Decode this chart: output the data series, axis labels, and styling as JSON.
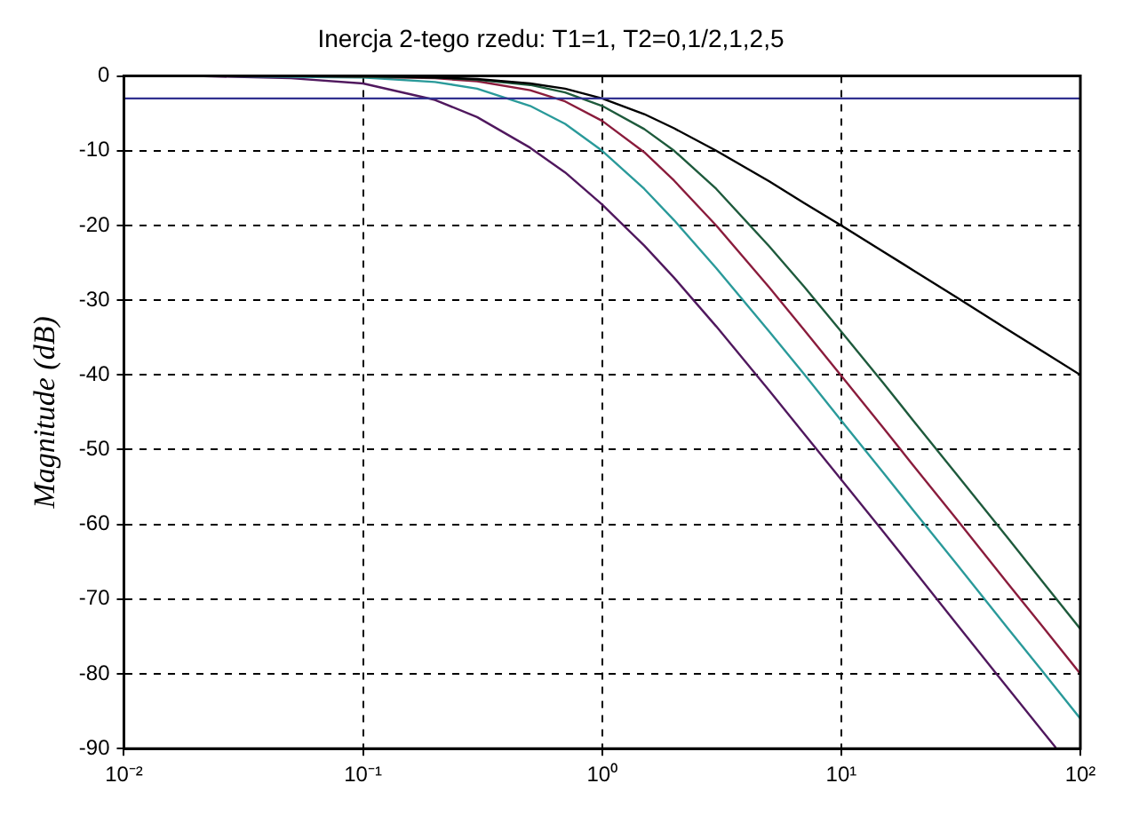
{
  "chart_data": {
    "type": "line",
    "title": "Inercja 2-tego rzedu: T1=1, T2=0,1/2,1,2,5",
    "ylabel": "Magnitude (dB)",
    "x": [
      0.01,
      0.02,
      0.05,
      0.1,
      0.2,
      0.3,
      0.5,
      0.7,
      1,
      1.5,
      2,
      3,
      5,
      7,
      10,
      15,
      20,
      30,
      50,
      70,
      100
    ],
    "series": [
      {
        "color": "#000000",
        "values": [
          0,
          0,
          0,
          0,
          -0.2,
          -0.4,
          -1,
          -1.7,
          -3,
          -5.1,
          -7,
          -10,
          -14.1,
          -17,
          -20,
          -23.5,
          -26,
          -29.5,
          -34,
          -36.9,
          -40
        ]
      },
      {
        "color": "#1e5a3c",
        "values": [
          0,
          0,
          0,
          -0.1,
          -0.2,
          -0.5,
          -1.2,
          -2.2,
          -4,
          -7.1,
          -10,
          -15.1,
          -22.8,
          -28.2,
          -34.2,
          -41.1,
          -46.1,
          -53.1,
          -61.9,
          -67.8,
          -74
        ]
      },
      {
        "color": "#8a1c3c",
        "values": [
          0,
          0,
          0,
          -0.1,
          -0.3,
          -0.7,
          -1.9,
          -3.4,
          -6,
          -10.2,
          -14,
          -20,
          -28.3,
          -34,
          -40.1,
          -47.1,
          -52.1,
          -59.1,
          -68,
          -73.8,
          -80
        ]
      },
      {
        "color": "#2a9a9a",
        "values": [
          0,
          0,
          -0.1,
          -0.2,
          -0.8,
          -1.7,
          -4,
          -6.4,
          -10,
          -15.1,
          -19.3,
          -25.7,
          -34.2,
          -39.9,
          -46.1,
          -53.1,
          -58.1,
          -65.1,
          -74,
          -79.8,
          -86
        ]
      },
      {
        "color": "#50185e",
        "x": [
          0.01,
          0.02,
          0.05,
          0.1,
          0.2,
          0.3,
          0.5,
          0.7,
          1,
          1.5,
          2,
          3,
          5,
          7,
          10,
          15,
          20,
          30,
          50,
          70,
          79
        ],
        "values": [
          0,
          0,
          -0.3,
          -1,
          -3.2,
          -5.5,
          -9.6,
          -12.9,
          -17.2,
          -22.7,
          -27,
          -33.5,
          -42.1,
          -47.9,
          -54,
          -61,
          -66,
          -73.1,
          -82,
          -87.8,
          -89.9
        ]
      }
    ],
    "log": "x",
    "xlim": [
      0.01,
      100
    ],
    "xticks": [
      {
        "value": 0.01,
        "label": "10⁻²"
      },
      {
        "value": 0.1,
        "label": "10⁻¹"
      },
      {
        "value": 1,
        "label": "10⁰"
      },
      {
        "value": 10,
        "label": "10¹"
      },
      {
        "value": 100,
        "label": "10²"
      }
    ],
    "ylim": [
      -90,
      0
    ],
    "yticks": [
      -90,
      -80,
      -70,
      -60,
      -50,
      -40,
      -30,
      -20,
      -10,
      0
    ],
    "ref_lines": [
      {
        "axis": "y",
        "value": -3,
        "color": "#303090"
      }
    ],
    "grid": true,
    "legend": false,
    "marker": "none",
    "line_style": "solid"
  }
}
